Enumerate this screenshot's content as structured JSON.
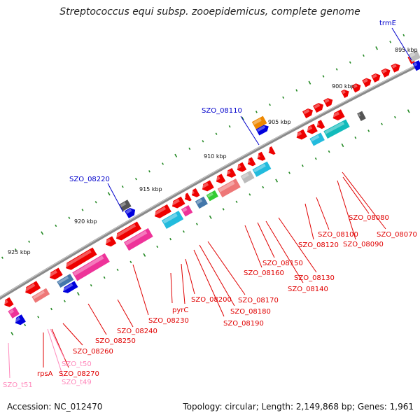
{
  "title": "Streptococcus equi subsp. zooepidemicus, complete genome",
  "footer": {
    "accession": "Accession: NC_012470",
    "stats": "Topology: circular; Length: 2,149,868 bp; Genes: 1,961"
  },
  "colors": {
    "backbone": "#888888",
    "gene_label": "#e00000",
    "trna_label": "#ff88bb",
    "highlight_label": "#0000cc",
    "tick": "#228822"
  },
  "kbp_labels": [
    "895 kbp",
    "900 kbp",
    "905 kbp",
    "910 kbp",
    "915 kbp",
    "920 kbp",
    "925 kbp"
  ],
  "highlight_labels": [
    "trmE",
    "SZO_08110",
    "SZO_08220"
  ],
  "gene_labels": [
    "SZO_08080",
    "SZO_08070",
    "SZO_08100",
    "SZO_08090",
    "SZO_08120",
    "SZO_08150",
    "SZO_08130",
    "SZO_08140",
    "SZO_08160",
    "SZO_08170",
    "SZO_08180",
    "SZO_08190",
    "SZO_08200",
    "SZO_08230",
    "pyrC",
    "SZO_08240",
    "SZO_08250",
    "SZO_08260",
    "SZO_08270",
    "rpsA"
  ],
  "trna_labels": [
    "SZO_t50",
    "SZO_t49",
    "SZO_t51"
  ]
}
